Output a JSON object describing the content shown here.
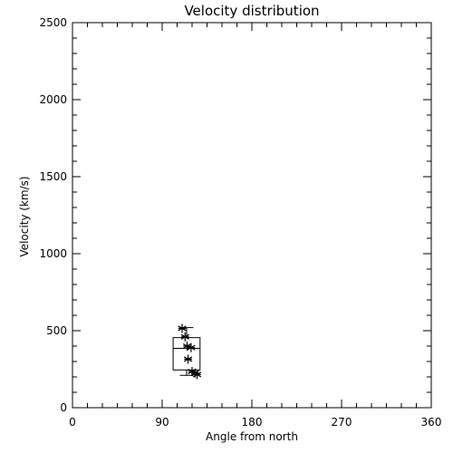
{
  "chart_data": {
    "type": "scatter",
    "title": "Velocity distribution",
    "xlabel": "Angle from north",
    "ylabel": "Velocity (km/s)",
    "xlim": [
      0,
      360
    ],
    "ylim": [
      0,
      2500
    ],
    "xticks": [
      0,
      90,
      180,
      270,
      360
    ],
    "yticks": [
      0,
      500,
      1000,
      1500,
      2000,
      2500
    ],
    "grid": false,
    "marker": "asterisk",
    "color": "#000000",
    "points": [
      {
        "x": 110,
        "y": 515
      },
      {
        "x": 113,
        "y": 460
      },
      {
        "x": 115,
        "y": 400
      },
      {
        "x": 119,
        "y": 390
      },
      {
        "x": 116,
        "y": 315
      },
      {
        "x": 120,
        "y": 235
      },
      {
        "x": 123,
        "y": 225
      },
      {
        "x": 125,
        "y": 215
      }
    ],
    "boxplot": {
      "x_min": 101,
      "x_max": 128,
      "whisker_low": 210,
      "q1": 245,
      "median": 385,
      "q3": 455,
      "whisker_high": 520
    }
  }
}
